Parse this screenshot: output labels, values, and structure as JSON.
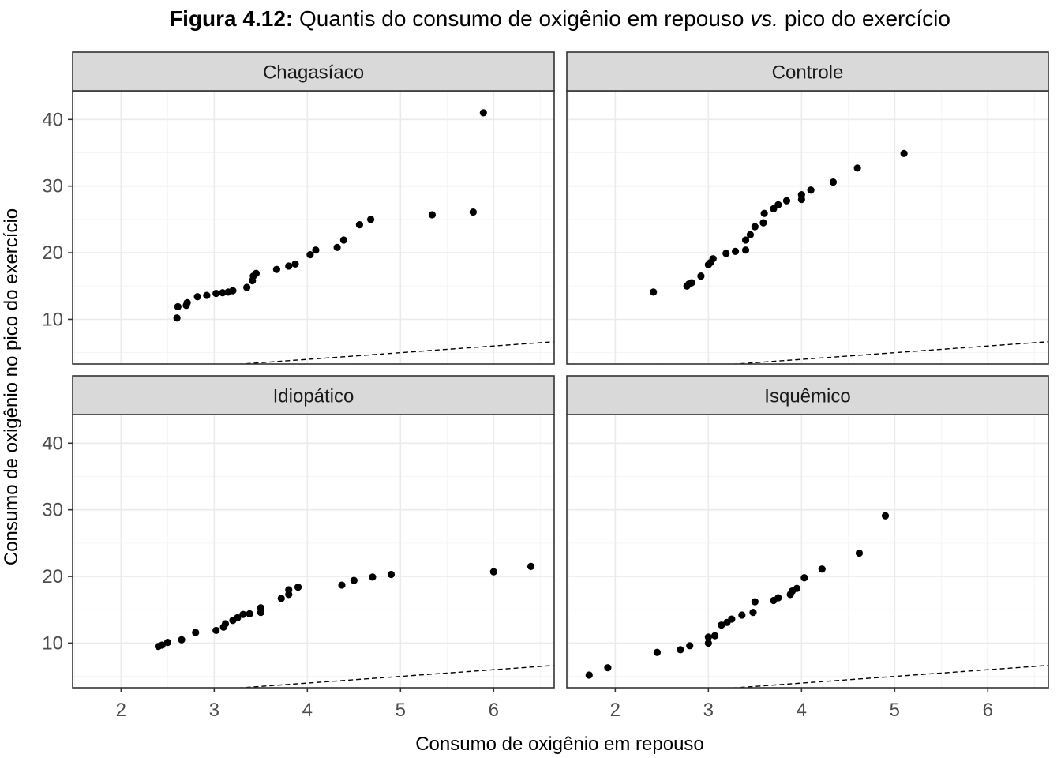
{
  "figure": {
    "title_bold": "Figura 4.12:",
    "title_part1": " Quantis do consumo de oxigênio em repouso ",
    "title_italic": "vs.",
    "title_part2": " pico do exercício",
    "xlabel": "Consumo de oxigênio em repouso",
    "ylabel": "Consumo de oxigênio no pico do exercício",
    "colors": {
      "point": "#000000",
      "strip_fill": "#d9d9d9",
      "grid_major": "#ebebeb",
      "grid_minor": "#f5f5f5",
      "panel_border": "#333333",
      "tick_label": "#4d4d4d",
      "reference_line": "#000000"
    }
  },
  "chart_data": [
    {
      "type": "scatter",
      "panel": "Chagasíaco",
      "xlim": [
        1.48,
        6.65
      ],
      "ylim": [
        3.3,
        44.3
      ],
      "x_ticks": [
        2,
        3,
        4,
        5,
        6
      ],
      "y_ticks": [
        10,
        20,
        30,
        40
      ],
      "grid": true,
      "reference_line": {
        "style": "dashed",
        "intercept": 0,
        "slope": 1
      },
      "points": [
        [
          2.6,
          10.2
        ],
        [
          2.61,
          11.9
        ],
        [
          2.7,
          12.1
        ],
        [
          2.71,
          12.5
        ],
        [
          2.82,
          13.4
        ],
        [
          2.92,
          13.6
        ],
        [
          3.02,
          13.9
        ],
        [
          3.09,
          14.0
        ],
        [
          3.15,
          14.1
        ],
        [
          3.2,
          14.3
        ],
        [
          3.35,
          14.8
        ],
        [
          3.41,
          15.8
        ],
        [
          3.42,
          16.5
        ],
        [
          3.45,
          16.9
        ],
        [
          3.67,
          17.5
        ],
        [
          3.8,
          18.0
        ],
        [
          3.87,
          18.3
        ],
        [
          4.03,
          19.7
        ],
        [
          4.09,
          20.4
        ],
        [
          4.32,
          20.8
        ],
        [
          4.39,
          21.9
        ],
        [
          4.56,
          24.2
        ],
        [
          4.68,
          25.0
        ],
        [
          5.34,
          25.7
        ],
        [
          5.78,
          26.1
        ],
        [
          5.89,
          41.0
        ]
      ]
    },
    {
      "type": "scatter",
      "panel": "Controle",
      "xlim": [
        1.48,
        6.65
      ],
      "ylim": [
        3.3,
        44.3
      ],
      "x_ticks": [
        2,
        3,
        4,
        5,
        6
      ],
      "y_ticks": [
        10,
        20,
        30,
        40
      ],
      "grid": true,
      "reference_line": {
        "style": "dashed",
        "intercept": 0,
        "slope": 1
      },
      "points": [
        [
          2.41,
          14.1
        ],
        [
          2.77,
          15.0
        ],
        [
          2.79,
          15.3
        ],
        [
          2.82,
          15.5
        ],
        [
          2.92,
          16.5
        ],
        [
          3.0,
          18.2
        ],
        [
          3.02,
          18.5
        ],
        [
          3.05,
          19.1
        ],
        [
          3.19,
          19.9
        ],
        [
          3.29,
          20.2
        ],
        [
          3.4,
          20.4
        ],
        [
          3.4,
          21.9
        ],
        [
          3.45,
          22.7
        ],
        [
          3.5,
          23.9
        ],
        [
          3.59,
          24.5
        ],
        [
          3.6,
          25.9
        ],
        [
          3.7,
          26.6
        ],
        [
          3.75,
          27.2
        ],
        [
          3.84,
          27.8
        ],
        [
          4.0,
          28.0
        ],
        [
          4.0,
          28.7
        ],
        [
          4.1,
          29.4
        ],
        [
          4.34,
          30.6
        ],
        [
          4.6,
          32.7
        ],
        [
          5.1,
          34.9
        ]
      ]
    },
    {
      "type": "scatter",
      "panel": "Idiopático",
      "xlim": [
        1.48,
        6.65
      ],
      "ylim": [
        3.3,
        44.3
      ],
      "x_ticks": [
        2,
        3,
        4,
        5,
        6
      ],
      "y_ticks": [
        10,
        20,
        30,
        40
      ],
      "grid": true,
      "reference_line": {
        "style": "dashed",
        "intercept": 0,
        "slope": 1
      },
      "points": [
        [
          2.4,
          9.5
        ],
        [
          2.44,
          9.7
        ],
        [
          2.5,
          10.1
        ],
        [
          2.65,
          10.5
        ],
        [
          2.8,
          11.6
        ],
        [
          3.02,
          11.9
        ],
        [
          3.1,
          12.4
        ],
        [
          3.12,
          12.9
        ],
        [
          3.2,
          13.4
        ],
        [
          3.25,
          13.8
        ],
        [
          3.31,
          14.3
        ],
        [
          3.38,
          14.4
        ],
        [
          3.5,
          14.6
        ],
        [
          3.5,
          15.3
        ],
        [
          3.72,
          16.7
        ],
        [
          3.8,
          17.3
        ],
        [
          3.8,
          18.0
        ],
        [
          3.9,
          18.4
        ],
        [
          4.37,
          18.7
        ],
        [
          4.5,
          19.4
        ],
        [
          4.7,
          19.9
        ],
        [
          4.9,
          20.3
        ],
        [
          6.0,
          20.7
        ],
        [
          6.4,
          21.5
        ]
      ]
    },
    {
      "type": "scatter",
      "panel": "Isquêmico",
      "xlim": [
        1.48,
        6.65
      ],
      "ylim": [
        3.3,
        44.3
      ],
      "x_ticks": [
        2,
        3,
        4,
        5,
        6
      ],
      "y_ticks": [
        10,
        20,
        30,
        40
      ],
      "grid": true,
      "reference_line": {
        "style": "dashed",
        "intercept": 0,
        "slope": 1
      },
      "points": [
        [
          1.72,
          5.2
        ],
        [
          1.92,
          6.3
        ],
        [
          2.45,
          8.6
        ],
        [
          2.7,
          9.0
        ],
        [
          2.8,
          9.6
        ],
        [
          3.0,
          10.0
        ],
        [
          3.0,
          10.9
        ],
        [
          3.07,
          11.1
        ],
        [
          3.14,
          12.7
        ],
        [
          3.2,
          13.1
        ],
        [
          3.25,
          13.6
        ],
        [
          3.36,
          14.2
        ],
        [
          3.48,
          14.6
        ],
        [
          3.5,
          16.2
        ],
        [
          3.7,
          16.4
        ],
        [
          3.75,
          16.8
        ],
        [
          3.88,
          17.3
        ],
        [
          3.9,
          17.8
        ],
        [
          3.95,
          18.2
        ],
        [
          4.03,
          19.8
        ],
        [
          4.22,
          21.1
        ],
        [
          4.62,
          23.5
        ],
        [
          4.9,
          29.1
        ]
      ]
    }
  ]
}
